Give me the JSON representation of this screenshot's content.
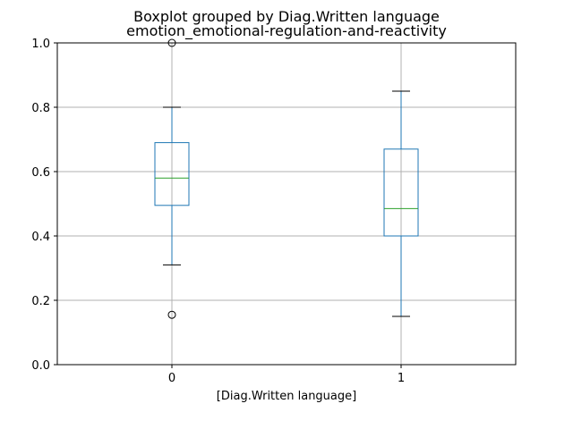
{
  "chart_data": {
    "type": "boxplot",
    "title": "Boxplot grouped by Diag.Written language",
    "subtitle": "emotion_emotional-regulation-and-reactivity",
    "xlabel": "[Diag.Written language]",
    "ylabel": "",
    "ylim": [
      0.0,
      1.0
    ],
    "yticks": [
      "0.0",
      "0.2",
      "0.4",
      "0.6",
      "0.8",
      "1.0"
    ],
    "yticks_values": [
      0.0,
      0.2,
      0.4,
      0.6,
      0.8,
      1.0
    ],
    "categories": [
      "0",
      "1"
    ],
    "grid": true,
    "boxes": [
      {
        "category": "0",
        "whisker_low": 0.31,
        "q1": 0.495,
        "median": 0.58,
        "q3": 0.69,
        "whisker_high": 0.8,
        "outliers": [
          0.155,
          1.0
        ]
      },
      {
        "category": "1",
        "whisker_low": 0.15,
        "q1": 0.4,
        "median": 0.485,
        "q3": 0.67,
        "whisker_high": 0.85,
        "outliers": []
      }
    ],
    "colors": {
      "box": "#1f77b4",
      "median": "#2ca02c",
      "whisker_cap": "#000000",
      "outlier": "#000000",
      "grid": "#b0b0b0"
    }
  }
}
